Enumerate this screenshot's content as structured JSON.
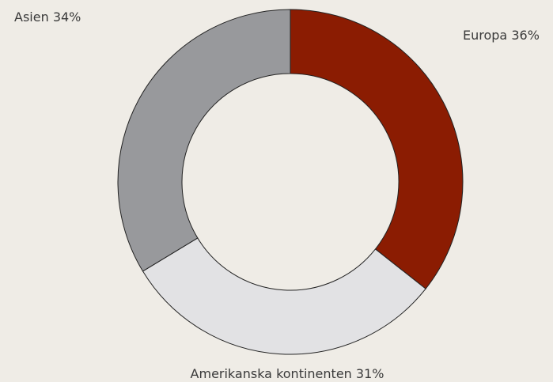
{
  "chart_data": {
    "type": "donut",
    "categories": [
      "Europa",
      "Amerikanska kontinenten",
      "Asien"
    ],
    "values": [
      36,
      31,
      34
    ],
    "value_labels": [
      "36%",
      "31%",
      "34%"
    ],
    "colors": [
      "#8b1c02",
      "#e2e2e4",
      "#98999c"
    ]
  }
}
